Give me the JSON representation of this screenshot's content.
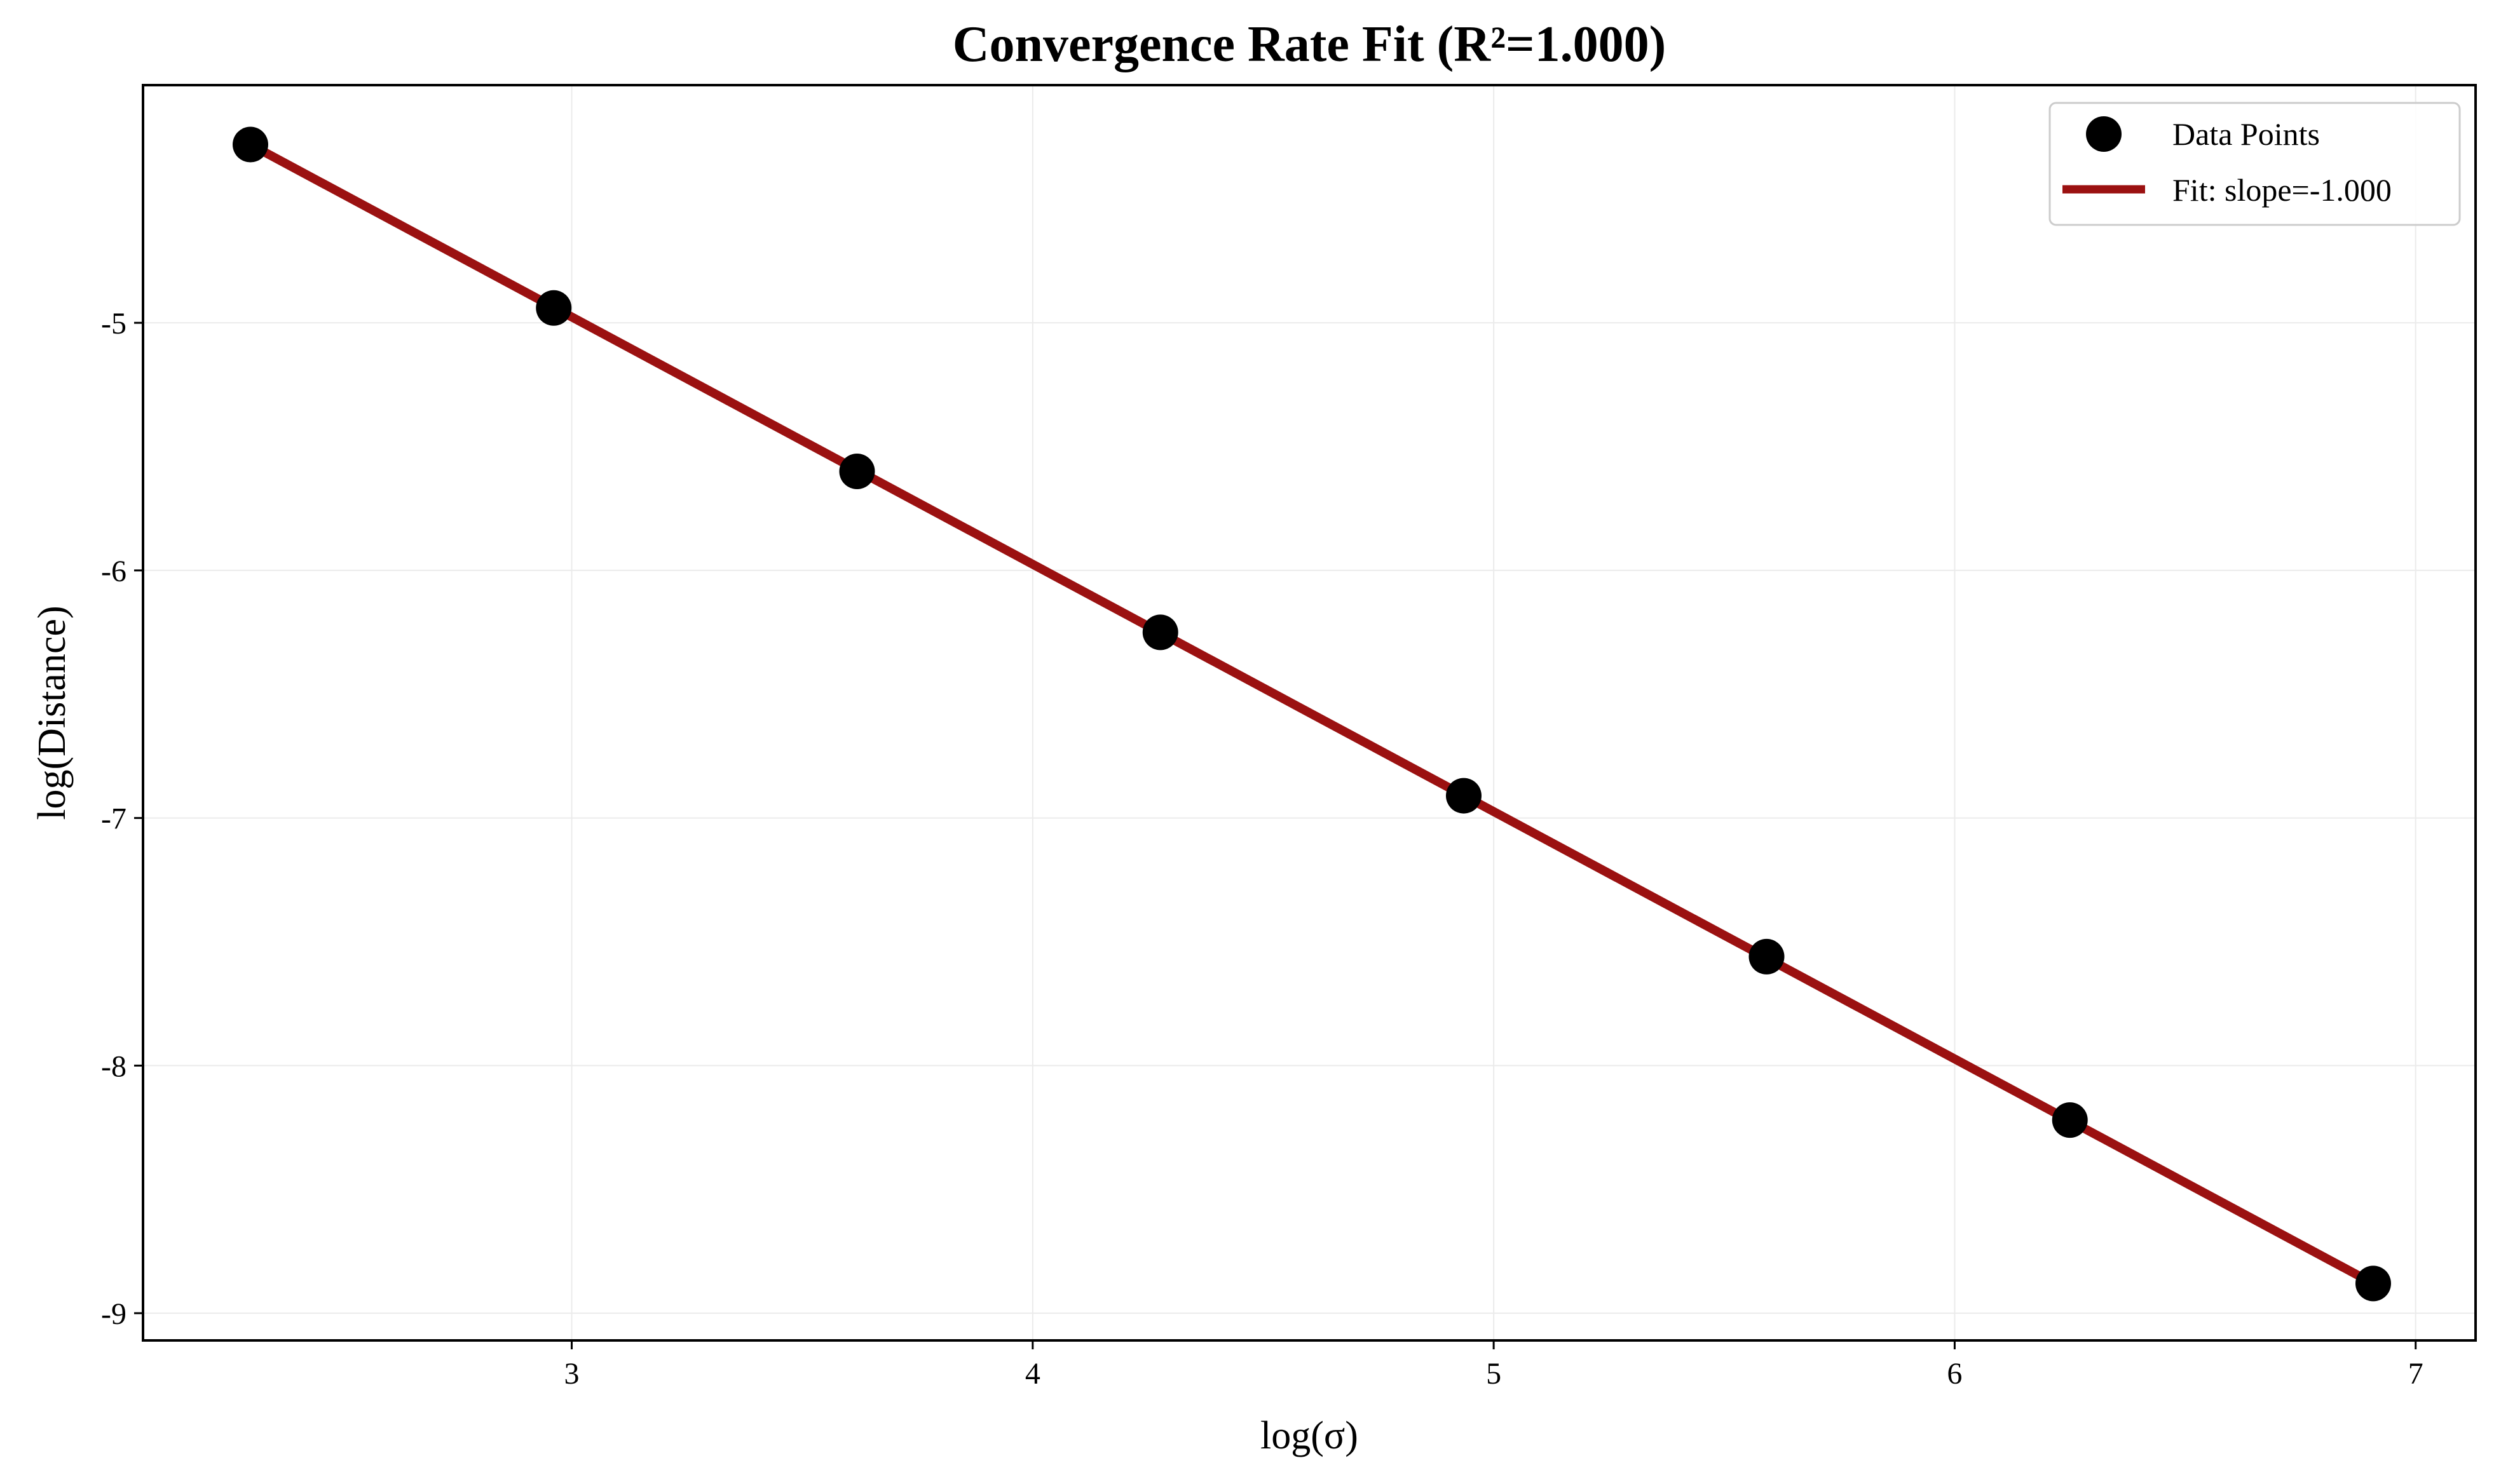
{
  "chart_data": {
    "type": "scatter",
    "title": "Convergence Rate Fit (R²=1.000)",
    "xlabel": "log(σ)",
    "ylabel": "log(Distance)",
    "xlim": [
      2.07,
      7.13
    ],
    "ylim": [
      -9.11,
      -4.04
    ],
    "xticks": [
      3,
      4,
      5,
      6,
      7
    ],
    "yticks": [
      -5,
      -6,
      -7,
      -8,
      -9
    ],
    "grid": true,
    "legend_position": "upper right",
    "series": [
      {
        "name": "Data Points",
        "kind": "scatter",
        "color": "#000000",
        "x": [
          2.303,
          2.961,
          3.619,
          4.277,
          4.935,
          5.592,
          6.25,
          6.908
        ],
        "y": [
          -4.28,
          -4.94,
          -5.6,
          -6.25,
          -6.91,
          -7.56,
          -8.22,
          -8.88
        ]
      },
      {
        "name": "Fit: slope=-1.000",
        "kind": "line",
        "color": "#9b1111",
        "x": [
          2.303,
          6.908
        ],
        "y": [
          -4.28,
          -8.88
        ]
      }
    ]
  }
}
